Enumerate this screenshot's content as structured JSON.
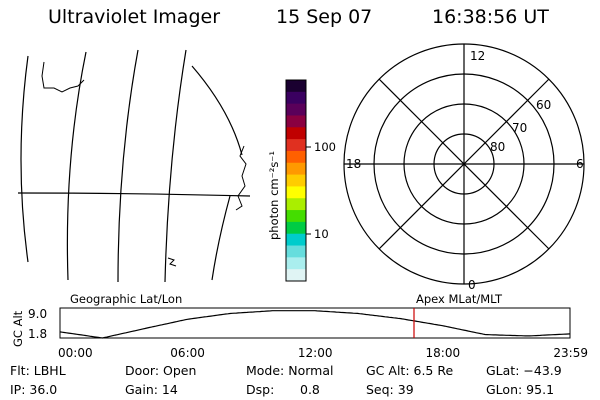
{
  "header": {
    "title": "Ultraviolet Imager",
    "date": "15 Sep 07",
    "time": "16:38:56 UT"
  },
  "colorbar": {
    "label": "photon cm⁻²s⁻¹",
    "ticks": [
      "100",
      "10"
    ],
    "colors": [
      "#1a0030",
      "#3a0060",
      "#5a005a",
      "#8a0040",
      "#c00000",
      "#e03020",
      "#ff6000",
      "#ff9900",
      "#ffcc00",
      "#ffff00",
      "#aaee00",
      "#44dd00",
      "#00cc44",
      "#00cccc",
      "#66dddd",
      "#aaeeee",
      "#e0f4f4"
    ]
  },
  "polar_grid": {
    "mlt_labels": {
      "top": "12",
      "left": "18",
      "right": "6",
      "bottom": "0"
    },
    "lat_labels": [
      "60",
      "70",
      "80"
    ]
  },
  "bottom_panel": {
    "left_label": "Geographic Lat/Lon",
    "right_label": "Apex MLat/MLT",
    "y_axis_title": "GC Alt",
    "y_ticks": [
      "9.0",
      "1.8"
    ],
    "x_ticks": [
      "00:00",
      "06:00",
      "12:00",
      "18:00",
      "23:59"
    ]
  },
  "info": {
    "flt": "Flt: LBHL",
    "ip": "IP: 36.0",
    "door": "Door: Open",
    "gain": "Gain: 14",
    "mode": "Mode: Normal",
    "dsp_label": "Dsp:",
    "dsp_value": "0.8",
    "gcalt": "GC Alt: 6.5 Re",
    "seq": "Seq: 39",
    "glat": "GLat: −43.9",
    "glon": "GLon:  95.1"
  },
  "chart_data": {
    "type": "line",
    "title": "",
    "xlabel": "",
    "ylabel": "GC Alt",
    "x": [
      "00:00",
      "02:00",
      "04:00",
      "06:00",
      "08:00",
      "10:00",
      "12:00",
      "14:00",
      "16:00",
      "18:00",
      "20:00",
      "22:00",
      "23:59"
    ],
    "series": [
      {
        "values": [
          2.8,
          1.0,
          3.8,
          6.5,
          8.2,
          9.0,
          9.0,
          8.2,
          6.7,
          4.6,
          2.0,
          1.6,
          2.2
        ]
      }
    ],
    "ylim": [
      1.0,
      9.8
    ],
    "current_time_marker": "16:38:56",
    "marker_color": "#cc0000"
  }
}
